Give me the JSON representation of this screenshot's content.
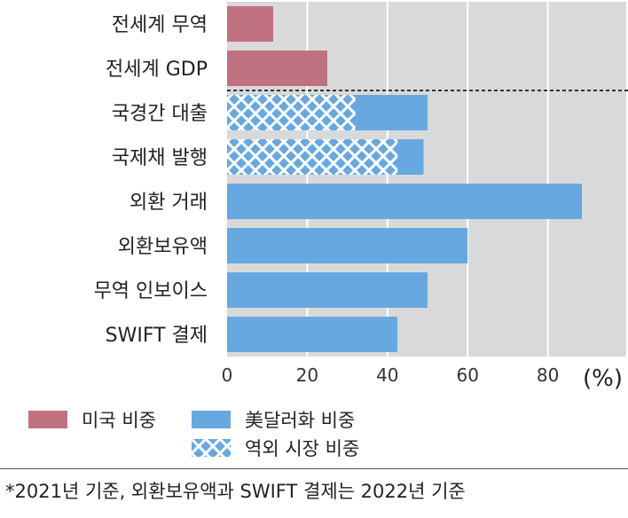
{
  "chart_data": {
    "type": "bar",
    "orientation": "horizontal",
    "categories": [
      "전세계 무역",
      "전세계 GDP",
      "국경간 대출",
      "국제채 발행",
      "외환 거래",
      "외환보유액",
      "무역 인보이스",
      "SWIFT 결제"
    ],
    "series": [
      {
        "name": "미국 비중",
        "values": [
          11.5,
          25,
          null,
          null,
          null,
          null,
          null,
          null
        ],
        "color": "#c0717f"
      },
      {
        "name": "美달러화 비중",
        "values": [
          null,
          null,
          50,
          49,
          88.5,
          60,
          50,
          42.5
        ],
        "color": "#68a8e0"
      },
      {
        "name": "역외 시장 비중",
        "values": [
          null,
          null,
          32,
          42.5,
          null,
          null,
          null,
          null
        ],
        "color": "#68a8e0",
        "pattern": "crosshatch"
      }
    ],
    "xlim": [
      0,
      100
    ],
    "xticks": [
      0,
      20,
      40,
      60,
      80
    ],
    "xunit": "(%)",
    "grid": true,
    "separator_after_category": 1
  },
  "legend": {
    "items": [
      {
        "label": "미국 비중",
        "color": "#c0717f"
      },
      {
        "label": "美달러화 비중",
        "color": "#68a8e0"
      },
      {
        "label": "역외 시장 비중",
        "color": "#68a8e0",
        "pattern": "crosshatch"
      }
    ]
  },
  "footnote": "*2021년 기준, 외환보유액과 SWIFT 결제는 2022년 기준"
}
